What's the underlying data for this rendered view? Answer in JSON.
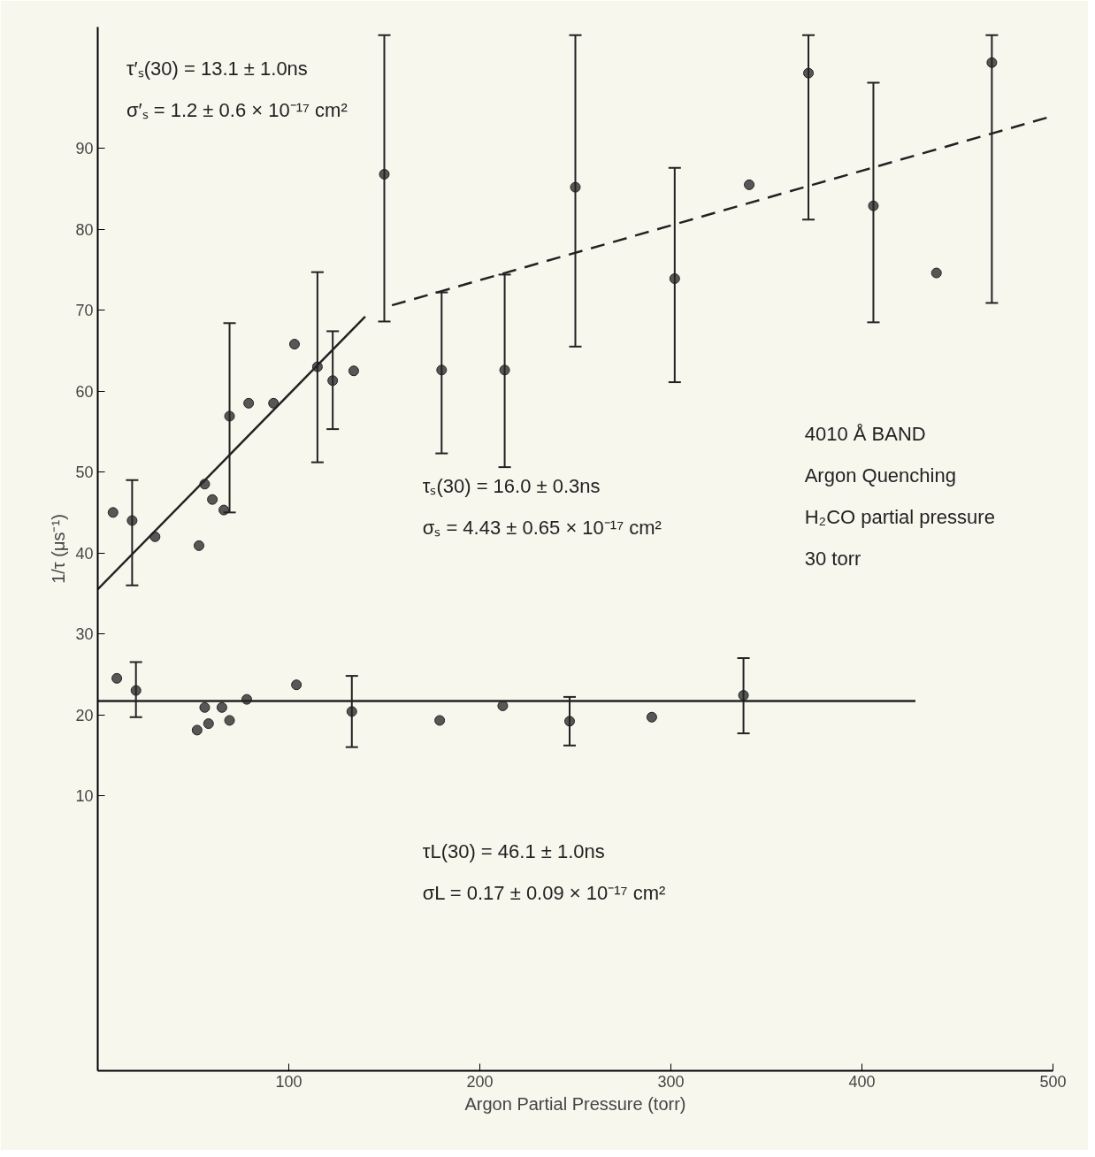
{
  "chart_data": {
    "type": "scatter",
    "xlabel": "Argon Partial Pressure (torr)",
    "ylabel": "1/τ (μs⁻¹)",
    "xlim": [
      0,
      500
    ],
    "ylim": [
      -24,
      105
    ],
    "xticks": [
      100,
      200,
      300,
      400,
      500
    ],
    "yticks": [
      10,
      20,
      30,
      40,
      50,
      60,
      70,
      80,
      90
    ],
    "marker": "circle",
    "annotations": [
      "τ′ₛ(30) = 13.1 ± 1.0ns",
      "σ′ₛ = 1.2 ± 0.6 × 10⁻¹⁷ cm²",
      "τₛ(30) = 16.0 ± 0.3ns",
      "σₛ = 4.43 ± 0.65 × 10⁻¹⁷ cm²",
      "τL(30) = 46.1 ± 1.0ns",
      "σL = 0.17 ± 0.09 × 10⁻¹⁷ cm²",
      "4010 Å BAND",
      "Argon Quenching",
      "H₂CO partial pressure",
      "30 torr"
    ],
    "series": [
      {
        "color": "#222222",
        "x": [
          468,
          439,
          406,
          372,
          341,
          302,
          250,
          213,
          180,
          150,
          134,
          123,
          115,
          103,
          92,
          79,
          69,
          66,
          60,
          56,
          53,
          30,
          18,
          8
        ],
        "values": [
          100.6,
          74.6,
          82.9,
          99.3,
          85.5,
          73.9,
          85.2,
          62.6,
          62.6,
          86.8,
          62.5,
          61.3,
          63.0,
          65.8,
          58.5,
          58.5,
          56.9,
          45.3,
          46.6,
          48.5,
          40.9,
          42.0,
          44.0,
          45.0
        ],
        "errors": [
          [
            70.9,
            104.0
          ],
          null,
          [
            68.5,
            98.1
          ],
          [
            81.2,
            104.0
          ],
          null,
          [
            61.1,
            87.6
          ],
          [
            65.5,
            104.0
          ],
          [
            50.6,
            74.4
          ],
          [
            52.3,
            72.2
          ],
          [
            68.6,
            104.0
          ],
          null,
          [
            55.3,
            67.4
          ],
          [
            51.2,
            74.7
          ],
          null,
          null,
          null,
          [
            45.0,
            68.4
          ],
          null,
          null,
          null,
          null,
          null,
          [
            36.0,
            49.0
          ],
          null
        ]
      },
      {
        "color": "#222222",
        "x": [
          338,
          290,
          247,
          212,
          179,
          133,
          104,
          78,
          69,
          65,
          58,
          56,
          52,
          20,
          10
        ],
        "values": [
          22.4,
          19.7,
          19.2,
          21.1,
          19.3,
          20.4,
          23.7,
          21.9,
          19.3,
          20.9,
          18.9,
          20.9,
          18.1,
          23.0,
          24.5
        ],
        "errors": [
          [
            17.7,
            27.0
          ],
          null,
          3.0,
          null,
          null,
          4.4,
          null,
          null,
          null,
          null,
          null,
          null,
          null,
          [
            19.7,
            26.5
          ],
          null
        ]
      },
      {
        "type": "line",
        "color": "#222222",
        "x": [
          0,
          140
        ],
        "values": [
          35.5,
          69.2
        ],
        "line_style": "solid",
        "marker": "none"
      },
      {
        "type": "line",
        "color": "#222222",
        "x": [
          154,
          500
        ],
        "values": [
          70.6,
          94.0
        ],
        "line_style": "dashed",
        "marker": "none"
      },
      {
        "type": "line",
        "color": "#222222",
        "x": [
          0,
          428
        ],
        "values": [
          21.7,
          21.7
        ],
        "line_style": "solid",
        "marker": "none"
      }
    ]
  }
}
